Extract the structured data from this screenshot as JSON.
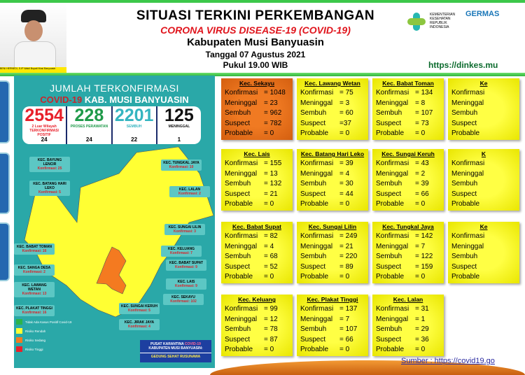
{
  "header": {
    "title": "SITUASI TERKINI PERKEMBANGAN",
    "subtitle": "CORONA VIRUS DISEASE-19 (COVID-19)",
    "region": "Kabupaten Musi Banyuasin",
    "date": "Tanggal 07 Agustus 2021",
    "time": "Pukul 19.00 WIB",
    "url": "https://dinkes.mu",
    "photo_caption": "BENI HERNEDI, S.IP Wakil Bupati Musi Banyuasin",
    "kemenkes": "KEMENTERIAN KESEHATAN REPUBLIK INDONESIA",
    "germas": "GERMAS"
  },
  "panel": {
    "title": "JUMLAH TERKONFIRMASI",
    "title2_red": "COVID-19",
    "title2": "KAB. MUSI BANYUASIN",
    "stats": [
      {
        "value": "2554",
        "label": "2 Luar Wilayah TERKONFIRMASI POSITIF",
        "delta": "24",
        "color": "#e8202a"
      },
      {
        "value": "228",
        "label": "PROSES PERAWATAN",
        "delta": "24",
        "color": "#1f9a4a"
      },
      {
        "value": "2201",
        "label": "SEMBUH",
        "delta": "22",
        "color": "#35b5c0"
      },
      {
        "value": "125",
        "label": "MENINGGAL",
        "delta": "1",
        "color": "#111111"
      }
    ],
    "map_labels": [
      {
        "name": "KEC. BAYUNG LENCIR",
        "konf": "Konfirmasi: 25"
      },
      {
        "name": "KEC. BATANG HARI LEKO",
        "konf": "Konfirmasi: 5"
      },
      {
        "name": "KEC. TUNGKAL JAYA",
        "konf": "Konfirmasi: 10"
      },
      {
        "name": "KEC. LALAN",
        "konf": "Konfirmasi: 2"
      },
      {
        "name": "KEC. SUNGAI LILIN",
        "konf": "Konfirmasi: 3"
      },
      {
        "name": "KEC. KELUANG",
        "konf": "Konfirmasi: 7"
      },
      {
        "name": "KEC. BABAT SUPAT",
        "konf": "Konfirmasi: 9"
      },
      {
        "name": "KEC. LAIS",
        "konf": "Konfirmasi: 9"
      },
      {
        "name": "KEC. SEKAYU",
        "konf": "Konfirmasi: 102"
      },
      {
        "name": "KEC. BABAT TOMAN",
        "konf": "Konfirmasi: 16"
      },
      {
        "name": "KEC. SANGA DESA",
        "konf": "Konfirmasi: 2"
      },
      {
        "name": "KEC. LAWANG WETAN",
        "konf": "Konfirmasi: 13"
      },
      {
        "name": "KEC. PLAKAT TINGGI",
        "konf": "Konfirmasi: 16"
      },
      {
        "name": "KEC. SUNGAI KERUH",
        "konf": "Konfirmasi: 5"
      },
      {
        "name": "KEC. JIRAK JAYA",
        "konf": "Konfirmasi: 4"
      }
    ],
    "legend": [
      {
        "label": "Tidak Ada Kasus Positif Covid-19",
        "color": "#2db34a"
      },
      {
        "label": "Risiko Rendah",
        "color": "#ffff33"
      },
      {
        "label": "Risiko Sedang",
        "color": "#f47a20"
      },
      {
        "label": "Risiko Tinggi",
        "color": "#e8202a"
      }
    ],
    "karantina": {
      "l1": "PUSAT KARANTINA",
      "l1_red": "COVID-19",
      "l2": "KABUPATEN MUSI BANYUASIN:",
      "l3": "GEDUNG SEHAT RUSUNAWA"
    }
  },
  "row_labels": [
    "Konfirmasi",
    "Meninggal",
    "Sembuh",
    "Suspect",
    "Probable"
  ],
  "cards": [
    {
      "title": "Kec. Sekayu",
      "values": [
        "= 1048",
        "= 23",
        "= 962",
        "= 782",
        "= 0"
      ],
      "risk": "orange"
    },
    {
      "title": "Kec. Lawang Wetan",
      "values": [
        "= 75",
        "= 3",
        "= 60",
        "=37",
        "= 0"
      ]
    },
    {
      "title": "Kec. Babat Toman",
      "values": [
        "= 134",
        "= 8",
        "= 107",
        "= 73",
        "= 0"
      ]
    },
    {
      "title": "Ke",
      "values": [
        "",
        "",
        "",
        "",
        ""
      ]
    },
    {
      "title": "Kec. Lais",
      "values": [
        "= 155",
        "= 13",
        "= 132",
        "= 21",
        "= 0"
      ]
    },
    {
      "title": "Kec. Batang Hari Leko",
      "values": [
        "= 39",
        "= 4",
        "= 30",
        "= 44",
        "= 0"
      ]
    },
    {
      "title": "Kec. Sungai Keruh",
      "values": [
        "= 43",
        "= 2",
        "= 39",
        "= 66",
        "= 0"
      ]
    },
    {
      "title": "K",
      "values": [
        "",
        "",
        "",
        "",
        ""
      ]
    },
    {
      "title": "Kec. Babat Supat",
      "values": [
        "= 82",
        "= 4",
        "=  68",
        "= 52",
        "= 0"
      ]
    },
    {
      "title": "Kec. Sungai Lilin",
      "values": [
        "= 249",
        "= 21",
        "= 220",
        "= 89",
        "= 0"
      ]
    },
    {
      "title": "Kec. Tungkal Jaya",
      "values": [
        "= 142",
        "= 7",
        "= 122",
        "= 159",
        "= 0"
      ]
    },
    {
      "title": "Ke",
      "values": [
        "",
        "",
        "",
        "",
        ""
      ]
    },
    {
      "title": "Kec. Keluang",
      "values": [
        "=  99",
        "= 12",
        "= 78",
        "= 87",
        "= 0"
      ]
    },
    {
      "title": "Kec. Plakat Tinggi",
      "values": [
        "= 137",
        "= 7",
        "= 107",
        "= 66",
        "= 0"
      ]
    },
    {
      "title": "Kec. Lalan",
      "values": [
        "= 31",
        "= 1",
        "= 29",
        "= 36",
        "= 0"
      ]
    }
  ],
  "source": "Sumber : https://covid19.go"
}
